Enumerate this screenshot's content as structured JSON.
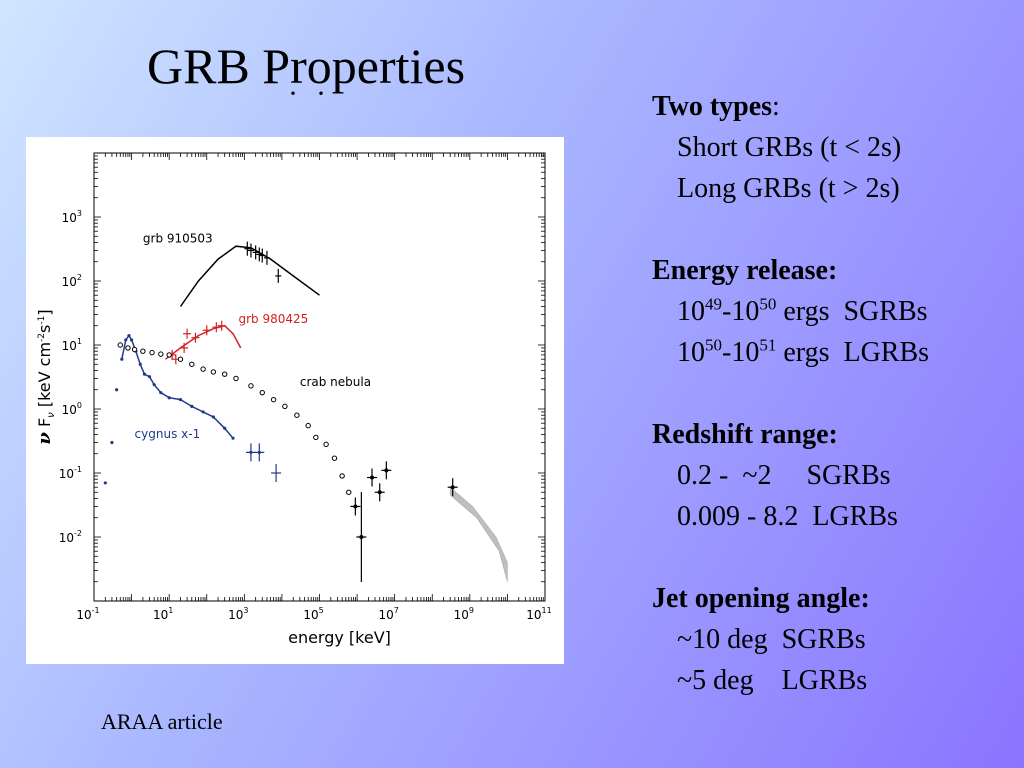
{
  "title": "GRB Properties",
  "footer": "ARAA article",
  "sections": {
    "types": {
      "heading": "Two types",
      "colon": ":",
      "lines": [
        "Short GRBs (t < 2s)",
        "Long GRBs (t > 2s)"
      ]
    },
    "energy": {
      "heading": "Energy release:",
      "lines": [
        {
          "a": "10",
          "ae": "49",
          "sep": "-",
          "b": "10",
          "be": "50",
          "rest": " ergs  SGRBs"
        },
        {
          "a": "10",
          "ae": "50",
          "sep": "-",
          "b": "10",
          "be": "51",
          "rest": " ergs  LGRBs"
        }
      ]
    },
    "redshift": {
      "heading": "Redshift range:",
      "lines": [
        "0.2 -  ~2     SGRBs",
        "0.009 - 8.2  LGRBs"
      ]
    },
    "jet": {
      "heading": "Jet opening angle:",
      "lines": [
        "~10 deg  SGRBs",
        "~5 deg    LGRBs"
      ]
    }
  },
  "colors": {
    "grb910503": "#000000",
    "grb980425": "#d62020",
    "cygnus": "#1f3a8c",
    "crab": "#000000",
    "band": "#b8b8b8"
  },
  "chart_data": {
    "type": "scatter",
    "xlabel": "energy [keV]",
    "ylabel": "ν F_ν [keV cm⁻² s⁻¹]",
    "ylabel_nu": "ν",
    "ylabel_F": "F",
    "ylabel_sub": "ν",
    "ylabel_rest": " [keV cm",
    "ylabel_e1": "-2",
    "ylabel_mid": "s",
    "ylabel_e2": "-1",
    "ylabel_end": "]",
    "xscale": "log",
    "yscale": "log",
    "xlim": [
      0.1,
      100000000000
    ],
    "ylim": [
      0.001,
      10000
    ],
    "xticks": [
      {
        "b": "10",
        "e": "-1",
        "v": 0.1
      },
      {
        "b": "10",
        "e": "1",
        "v": 10
      },
      {
        "b": "10",
        "e": "3",
        "v": 1000
      },
      {
        "b": "10",
        "e": "5",
        "v": 100000
      },
      {
        "b": "10",
        "e": "7",
        "v": 10000000
      },
      {
        "b": "10",
        "e": "9",
        "v": 1000000000
      },
      {
        "b": "10",
        "e": "11",
        "v": 100000000000
      }
    ],
    "yticks": [
      {
        "b": "10",
        "e": "-2",
        "v": 0.01
      },
      {
        "b": "10",
        "e": "-1",
        "v": 0.1
      },
      {
        "b": "10",
        "e": "0",
        "v": 1
      },
      {
        "b": "10",
        "e": "1",
        "v": 10
      },
      {
        "b": "10",
        "e": "2",
        "v": 100
      },
      {
        "b": "10",
        "e": "3",
        "v": 1000
      }
    ],
    "series": [
      {
        "name": "grb 910503",
        "model": [
          [
            20,
            40
          ],
          [
            60,
            100
          ],
          [
            200,
            220
          ],
          [
            600,
            350
          ],
          [
            1500,
            330
          ],
          [
            5000,
            220
          ],
          [
            20000,
            120
          ],
          [
            100000,
            60
          ]
        ],
        "points": [
          [
            1200,
            320
          ],
          [
            1500,
            300
          ],
          [
            2000,
            280
          ],
          [
            2500,
            260
          ],
          [
            3000,
            250
          ],
          [
            4000,
            230
          ],
          [
            8000,
            120
          ]
        ]
      },
      {
        "name": "grb 980425",
        "model": [
          [
            8,
            6
          ],
          [
            20,
            9
          ],
          [
            60,
            14
          ],
          [
            150,
            18
          ],
          [
            300,
            20
          ],
          [
            500,
            15
          ],
          [
            800,
            9
          ]
        ],
        "points": [
          [
            12,
            7
          ],
          [
            25,
            9
          ],
          [
            50,
            13
          ],
          [
            100,
            17
          ],
          [
            180,
            19
          ],
          [
            250,
            20
          ],
          [
            30,
            15
          ],
          [
            15,
            6
          ]
        ]
      },
      {
        "name": "cygnus x-1",
        "points": [
          [
            0.2,
            0.07
          ],
          [
            0.3,
            0.3
          ],
          [
            0.4,
            2
          ],
          [
            0.55,
            6
          ],
          [
            0.7,
            12
          ],
          [
            0.85,
            14
          ],
          [
            1,
            12
          ],
          [
            1.3,
            8
          ],
          [
            1.7,
            5
          ],
          [
            2.2,
            3.5
          ],
          [
            3,
            3.2
          ],
          [
            4,
            2.4
          ],
          [
            6,
            1.8
          ],
          [
            10,
            1.5
          ],
          [
            20,
            1.4
          ],
          [
            40,
            1.1
          ],
          [
            80,
            0.9
          ],
          [
            150,
            0.75
          ],
          [
            300,
            0.5
          ],
          [
            500,
            0.35
          ],
          [
            1500,
            0.21
          ],
          [
            2500,
            0.21
          ],
          [
            7000,
            0.1
          ]
        ]
      },
      {
        "name": "crab nebula",
        "points": [
          [
            0.5,
            10
          ],
          [
            0.8,
            9
          ],
          [
            1.2,
            8.5
          ],
          [
            2,
            8
          ],
          [
            3.5,
            7.6
          ],
          [
            6,
            7.2
          ],
          [
            10,
            7
          ],
          [
            20,
            6
          ],
          [
            40,
            5
          ],
          [
            80,
            4.2
          ],
          [
            150,
            3.8
          ],
          [
            300,
            3.5
          ],
          [
            600,
            3
          ],
          [
            1500,
            2.3
          ],
          [
            3000,
            1.8
          ],
          [
            6000,
            1.4
          ],
          [
            12000,
            1.1
          ],
          [
            25000,
            0.8
          ],
          [
            50000,
            0.55
          ],
          [
            80000,
            0.36
          ],
          [
            150000,
            0.28
          ],
          [
            250000,
            0.17
          ],
          [
            400000,
            0.09
          ],
          [
            600000,
            0.05
          ],
          [
            900000,
            0.03
          ],
          [
            1300000,
            0.01
          ],
          [
            2500000,
            0.085
          ],
          [
            4000000,
            0.05
          ],
          [
            6000000,
            0.11
          ],
          [
            350000000,
            0.06
          ]
        ]
      }
    ],
    "band": [
      [
        300000000,
        0.045
      ],
      [
        1500000000,
        0.02
      ],
      [
        6000000000,
        0.006
      ],
      [
        10000000000,
        0.002
      ],
      [
        10000000000,
        0.004
      ],
      [
        5000000000,
        0.01
      ],
      [
        1200000000,
        0.03
      ],
      [
        300000000,
        0.06
      ]
    ]
  }
}
